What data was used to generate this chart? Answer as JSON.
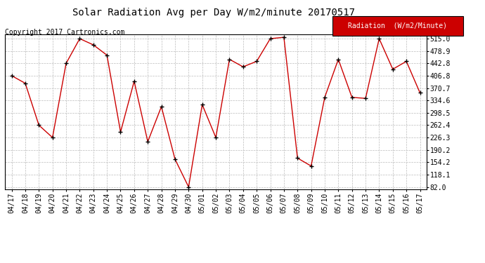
{
  "title": "Solar Radiation Avg per Day W/m2/minute 20170517",
  "copyright": "Copyright 2017 Cartronics.com",
  "legend_label": "Radiation  (W/m2/Minute)",
  "labels": [
    "04/17",
    "04/18",
    "04/19",
    "04/20",
    "04/21",
    "04/22",
    "04/23",
    "04/24",
    "04/25",
    "04/26",
    "04/27",
    "04/28",
    "04/29",
    "04/30",
    "05/01",
    "05/02",
    "05/03",
    "05/04",
    "05/05",
    "05/06",
    "05/07",
    "05/08",
    "05/09",
    "05/10",
    "05/11",
    "05/12",
    "05/13",
    "05/14",
    "05/15",
    "05/16",
    "05/17"
  ],
  "values": [
    406.8,
    384.7,
    262.4,
    226.3,
    442.8,
    515.0,
    496.9,
    466.8,
    242.4,
    390.7,
    214.2,
    316.5,
    163.1,
    82.0,
    322.5,
    226.3,
    454.7,
    432.8,
    448.7,
    515.0,
    519.0,
    166.3,
    143.2,
    343.6,
    454.7,
    343.6,
    340.6,
    515.0,
    425.8,
    448.7,
    356.7
  ],
  "line_color": "#cc0000",
  "marker": "+",
  "marker_color": "black",
  "bg_color": "#ffffff",
  "plot_bg_color": "#ffffff",
  "grid_color": "#bbbbbb",
  "yticks": [
    82.0,
    118.1,
    154.2,
    190.2,
    226.3,
    262.4,
    298.5,
    334.6,
    370.7,
    406.8,
    442.8,
    478.9,
    515.0
  ],
  "ylim": [
    75.0,
    528.0
  ],
  "legend_bg": "#cc0000",
  "legend_text_color": "#ffffff",
  "title_fontsize": 10,
  "copyright_fontsize": 7,
  "tick_fontsize": 7,
  "legend_fontsize": 7
}
